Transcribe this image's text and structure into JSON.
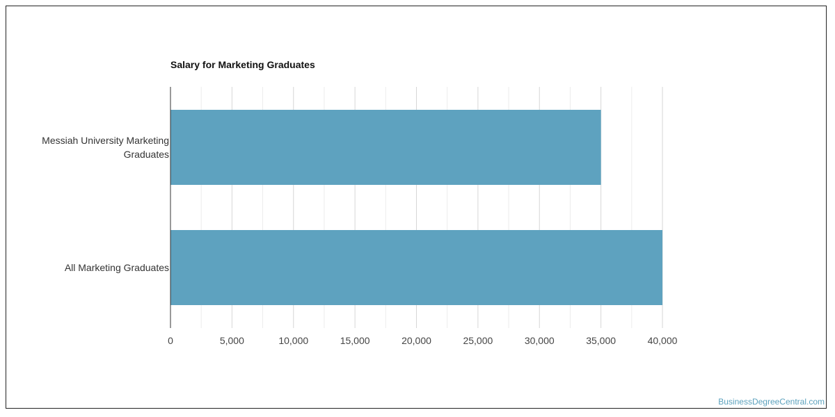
{
  "chart_data": {
    "type": "bar",
    "orientation": "horizontal",
    "title": "Salary for Marketing Graduates",
    "categories": [
      "Messiah University Marketing Graduates",
      "All Marketing Graduates"
    ],
    "values": [
      35000,
      40000
    ],
    "xlim": [
      0,
      40000
    ],
    "xticks": [
      0,
      5000,
      10000,
      15000,
      20000,
      25000,
      30000,
      35000,
      40000
    ],
    "xtick_labels": [
      "0",
      "5,000",
      "10,000",
      "15,000",
      "20,000",
      "25,000",
      "30,000",
      "35,000",
      "40,000"
    ],
    "grid": true,
    "bar_color": "#5ea2bf"
  },
  "watermark": "BusinessDegreeCentral.com",
  "colors": {
    "bar": "#5ea2bf",
    "grid": "#e0e0e0",
    "axis": "#333333",
    "watermark": "#5ba1bd"
  }
}
